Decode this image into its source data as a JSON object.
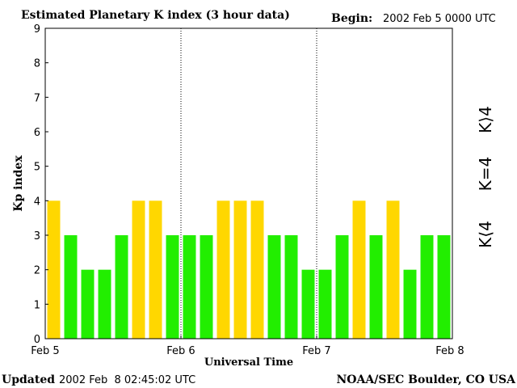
{
  "header": {
    "title": "Estimated Planetary K index (3 hour data)",
    "begin_label": "Begin:",
    "begin_value": "2002 Feb 5 0000 UTC"
  },
  "footer": {
    "updated_label": "Updated",
    "updated_value": "2002 Feb  8 02:45:02 UTC",
    "source": "NOAA/SEC Boulder, CO USA"
  },
  "legend": {
    "green_label": "K⟨4",
    "yellow_label": "K=4",
    "red_label": "K⟩4"
  },
  "colors": {
    "green": "#22ee00",
    "yellow": "#ffd700",
    "red": "#ee2200"
  },
  "chart_data": {
    "type": "bar",
    "title": "Estimated Planetary K index (3 hour data)",
    "xlabel": "Universal Time",
    "ylabel": "Kp index",
    "ylim": [
      0,
      9
    ],
    "yticks": [
      "0",
      "1",
      "2",
      "3",
      "4",
      "5",
      "6",
      "7",
      "8",
      "9"
    ],
    "xticks": [
      "Feb 5",
      "Feb 6",
      "Feb 7",
      "Feb 8"
    ],
    "day_separators": [
      "Feb 6",
      "Feb 7"
    ],
    "interval_hours": 3,
    "values": [
      4,
      3,
      2,
      2,
      3,
      4,
      4,
      3,
      3,
      3,
      4,
      4,
      4,
      3,
      3,
      2,
      2,
      3,
      4,
      3,
      4,
      2,
      3,
      3
    ]
  }
}
